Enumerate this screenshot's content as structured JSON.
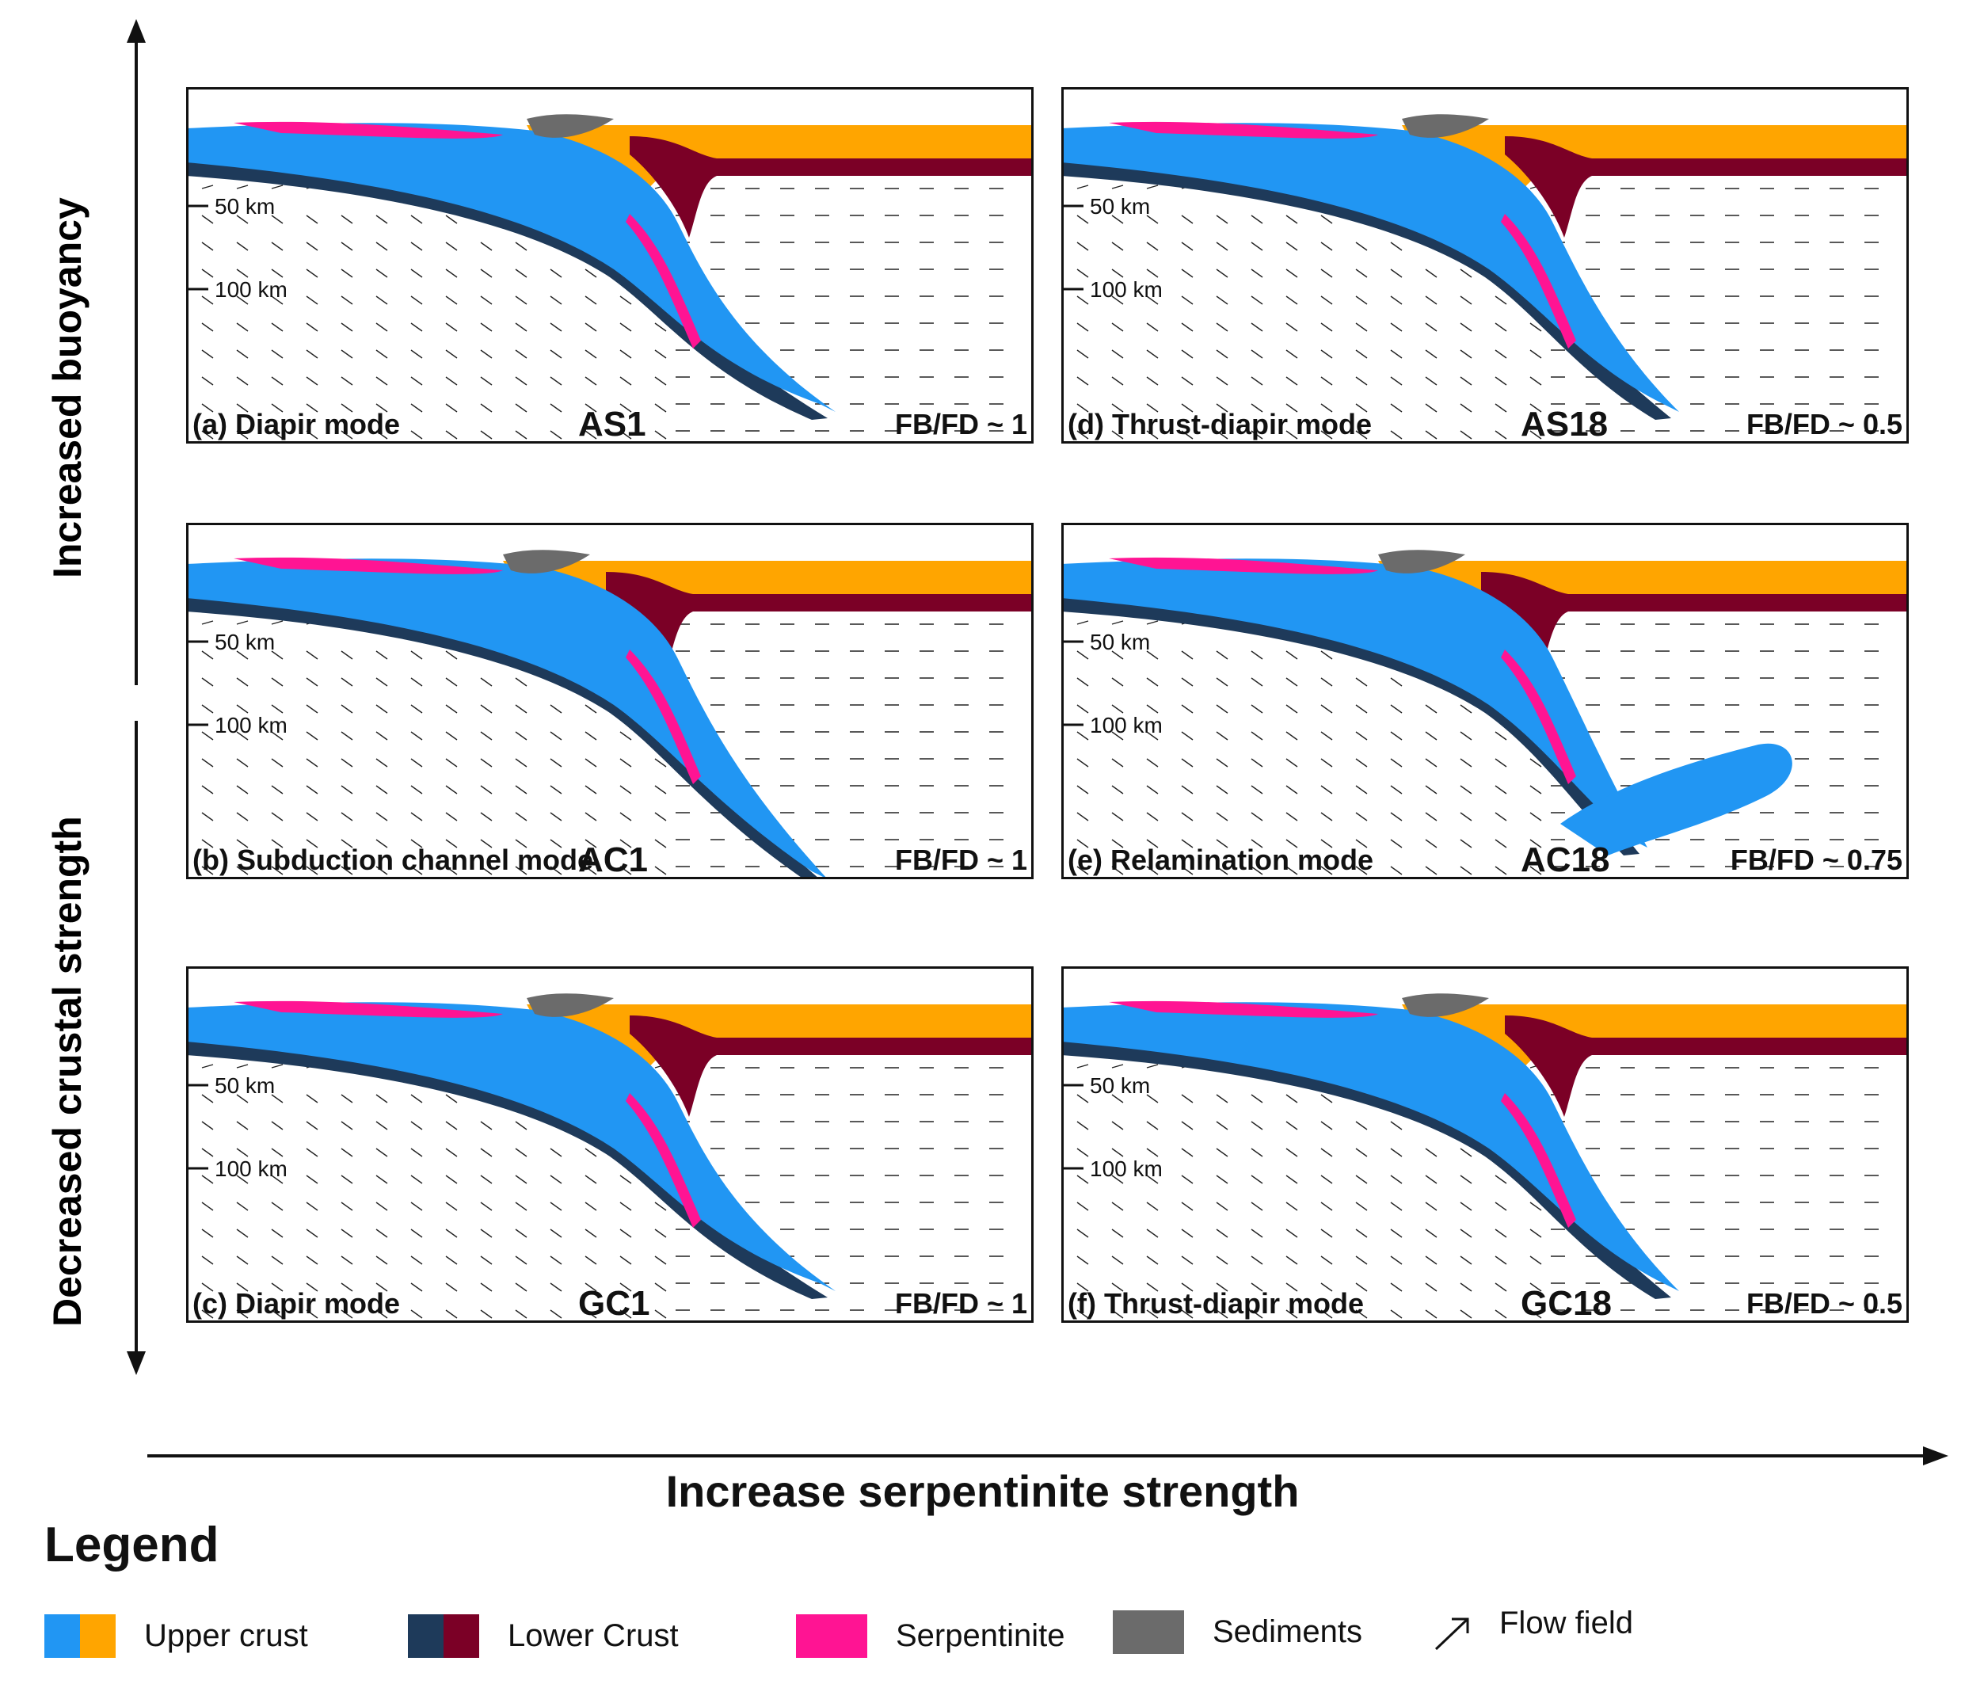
{
  "axes": {
    "vertical_top": "Increased buoyancy",
    "vertical_bottom": "Decreased crustal strength",
    "horizontal": "Increase serpentinite strength"
  },
  "depth_labels": [
    "50 km",
    "100 km"
  ],
  "panels": [
    {
      "label": "(a) Diapir mode",
      "model": "AS1",
      "ratio": "FB/FD ~ 1",
      "mode": "diapir-a"
    },
    {
      "label": "(d) Thrust-diapir mode",
      "model": "AS18",
      "ratio": "FB/FD ~ 0.5",
      "mode": "thrust-a"
    },
    {
      "label": "(b) Subduction channel mode",
      "model": "AC1",
      "ratio": "FB/FD ~ 1",
      "mode": "channel"
    },
    {
      "label": "(e) Relamination mode",
      "model": "AC18",
      "ratio": "FB/FD ~ 0.75",
      "mode": "relam"
    },
    {
      "label": "(c) Diapir mode",
      "model": "GC1",
      "ratio": "FB/FD ~ 1",
      "mode": "diapir-c"
    },
    {
      "label": "(f) Thrust-diapir mode",
      "model": "GC18",
      "ratio": "FB/FD ~ 0.5",
      "mode": "thrust-c"
    }
  ],
  "legend": {
    "title": "Legend",
    "items": [
      {
        "label": "Upper crust",
        "colors": [
          "#2196f3",
          "#ffa500"
        ]
      },
      {
        "label": "Lower Crust",
        "colors": [
          "#1e3a5a",
          "#7b0026"
        ]
      },
      {
        "label": "Serpentinite",
        "colors": [
          "#ff1493"
        ]
      },
      {
        "label": "Sediments",
        "colors": [
          "#6b6b6b"
        ]
      },
      {
        "label": "Flow field",
        "icon": "arrow-icon"
      }
    ]
  },
  "colors": {
    "upper_crust_subducting": "#2196f3",
    "upper_crust_overriding": "#ffa500",
    "lower_crust_subducting": "#1e3a5a",
    "lower_crust_overriding": "#7b0026",
    "serpentinite": "#ff1493",
    "sediments": "#6b6b6b"
  }
}
